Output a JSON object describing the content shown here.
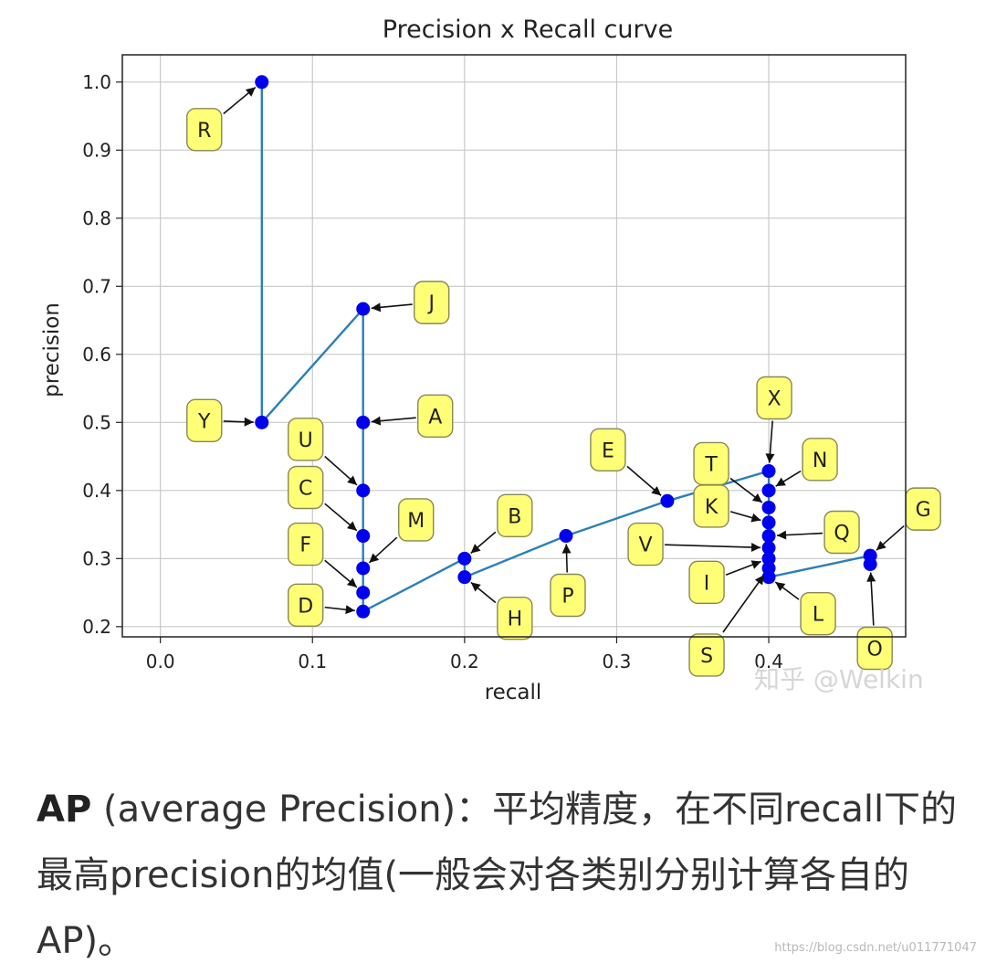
{
  "chart_data": {
    "type": "line",
    "title": "Precision x Recall curve",
    "xlabel": "recall",
    "ylabel": "precision",
    "xlim": [
      -0.025,
      0.49
    ],
    "ylim": [
      0.185,
      1.04
    ],
    "xticks": [
      0.0,
      0.1,
      0.2,
      0.3,
      0.4
    ],
    "yticks": [
      0.2,
      0.3,
      0.4,
      0.5,
      0.6,
      0.7,
      0.8,
      0.9,
      1.0
    ],
    "grid": true,
    "colors": {
      "line": "#2c7fb8",
      "point": "#0000ee",
      "label_bg": "#ffff77",
      "label_border": "#888855"
    },
    "points": [
      {
        "id": "R",
        "x": 0.0667,
        "y": 1.0
      },
      {
        "id": "Y",
        "x": 0.0667,
        "y": 0.5
      },
      {
        "id": "J",
        "x": 0.1333,
        "y": 0.6667
      },
      {
        "id": "A",
        "x": 0.1333,
        "y": 0.5
      },
      {
        "id": "U",
        "x": 0.1333,
        "y": 0.4
      },
      {
        "id": "C",
        "x": 0.1333,
        "y": 0.3333
      },
      {
        "id": "M",
        "x": 0.1333,
        "y": 0.2857
      },
      {
        "id": "F",
        "x": 0.1333,
        "y": 0.25
      },
      {
        "id": "D",
        "x": 0.1333,
        "y": 0.2222
      },
      {
        "id": "B",
        "x": 0.2,
        "y": 0.3
      },
      {
        "id": "H",
        "x": 0.2,
        "y": 0.2727
      },
      {
        "id": "P",
        "x": 0.2667,
        "y": 0.3333
      },
      {
        "id": "E",
        "x": 0.3333,
        "y": 0.3846
      },
      {
        "id": "X",
        "x": 0.4,
        "y": 0.4286
      },
      {
        "id": "N",
        "x": 0.4,
        "y": 0.4
      },
      {
        "id": "T",
        "x": 0.4,
        "y": 0.375
      },
      {
        "id": "K",
        "x": 0.4,
        "y": 0.3529
      },
      {
        "id": "Q",
        "x": 0.4,
        "y": 0.3333
      },
      {
        "id": "V",
        "x": 0.4,
        "y": 0.3158
      },
      {
        "id": "I",
        "x": 0.4,
        "y": 0.3
      },
      {
        "id": "S",
        "x": 0.4,
        "y": 0.2857
      },
      {
        "id": "L",
        "x": 0.4,
        "y": 0.2727
      },
      {
        "id": "G",
        "x": 0.4667,
        "y": 0.3043
      },
      {
        "id": "O",
        "x": 0.4667,
        "y": 0.2917
      }
    ]
  },
  "watermark": "知乎 @Welkin",
  "caption": {
    "bold": "AP",
    "text": " (average Precision)：平均精度，在不同recall下的最高precision的均值(一般会对各类别分别计算各自的AP)。"
  },
  "source_url": "https://blog.csdn.net/u011771047"
}
